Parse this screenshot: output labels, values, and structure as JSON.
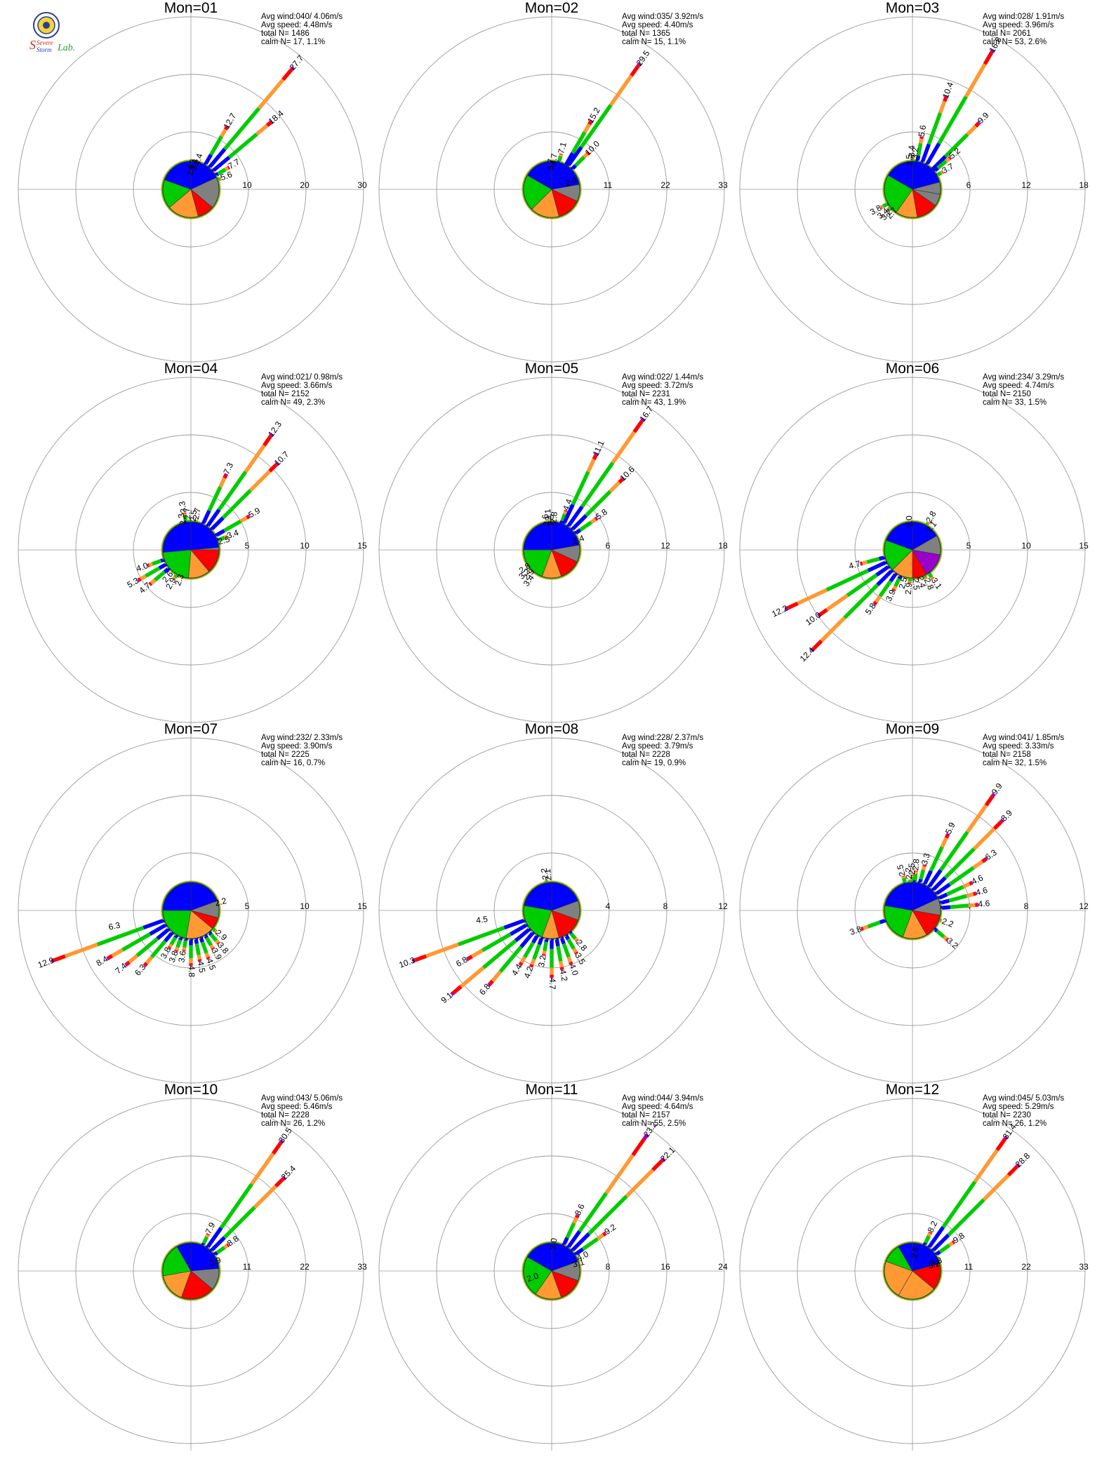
{
  "logo": {
    "text_line1": "Severe",
    "text_line2": "Storm",
    "text_line3": "Lab.",
    "colors": {
      "seal": "#2a3f8f",
      "seal_fill": "#f2d33a",
      "s": "#d4261a",
      "storm": "#1a3ccf",
      "lab": "#2a9a2a"
    }
  },
  "speed_class_colors": [
    "#0000ff",
    "#00cc00",
    "#ff9933",
    "#ff0000",
    "#9900cc"
  ],
  "sector_colors": {
    "blue": "#0000ff",
    "green": "#00cc00",
    "orange": "#ff9933",
    "red": "#ff0000",
    "purple": "#9900cc",
    "gray": "#808080"
  },
  "stats_labels": {
    "avg_wind": "Avg wind:",
    "avg_speed": "Avg speed:",
    "total": "total N=",
    "calm": "calm N="
  },
  "chart_data": [
    {
      "type": "wind-rose",
      "title": "Mon=01",
      "avg_wind": "040/ 4.06m/s",
      "avg_speed": "4.48m/s",
      "total_n": "1486",
      "calm": "17,   1.1%",
      "ring_labels": [
        "10",
        "20",
        "30"
      ],
      "rmax": 30,
      "labels": [
        [
          40,
          27.7,
          "27.7"
        ],
        [
          30,
          12.7,
          "12.7"
        ],
        [
          50,
          18.4,
          "18.4"
        ],
        [
          60,
          7.7,
          "7.7"
        ],
        [
          70,
          5.6,
          "5.6"
        ],
        [
          15,
          4.4,
          "4.4"
        ],
        [
          10,
          3.4,
          "3.4"
        ],
        [
          5,
          3.3,
          "3.3"
        ],
        [
          0,
          2.4,
          "2.4"
        ]
      ],
      "pie": [
        [
          0,
          65,
          "blue"
        ],
        [
          65,
          130,
          "gray"
        ],
        [
          130,
          165,
          "red"
        ],
        [
          165,
          230,
          "orange"
        ],
        [
          230,
          290,
          "green"
        ],
        [
          290,
          360,
          "blue"
        ]
      ]
    },
    {
      "type": "wind-rose",
      "title": "Mon=02",
      "avg_wind": "035/ 3.92m/s",
      "avg_speed": "4.40m/s",
      "total_n": "1365",
      "calm": "15,   1.1%",
      "ring_labels": [
        "11",
        "22",
        "33"
      ],
      "rmax": 33,
      "labels": [
        [
          35,
          29.5,
          "29.5"
        ],
        [
          30,
          15.2,
          "15.2"
        ],
        [
          45,
          10.0,
          "10.0"
        ],
        [
          70,
          2.9,
          "2.9"
        ],
        [
          15,
          7.1,
          "7.1"
        ],
        [
          5,
          4.7,
          "4.7"
        ],
        [
          0,
          3.7,
          "3.7"
        ]
      ],
      "pie": [
        [
          0,
          80,
          "blue"
        ],
        [
          80,
          115,
          "gray"
        ],
        [
          115,
          165,
          "red"
        ],
        [
          165,
          225,
          "orange"
        ],
        [
          225,
          300,
          "green"
        ],
        [
          300,
          360,
          "blue"
        ]
      ]
    },
    {
      "type": "wind-rose",
      "title": "Mon=03",
      "avg_wind": "028/ 1.91m/s",
      "avg_speed": "3.96m/s",
      "total_n": "2061",
      "calm": "53,   2.6%",
      "ring_labels": [
        "6",
        "12",
        "18"
      ],
      "rmax": 18,
      "labels": [
        [
          30,
          16.8,
          "16.8"
        ],
        [
          20,
          10.4,
          "10.4"
        ],
        [
          45,
          9.9,
          "9.9"
        ],
        [
          10,
          5.6,
          "5.6"
        ],
        [
          50,
          5.2,
          "5.2"
        ],
        [
          60,
          3.7,
          "3.7"
        ],
        [
          0,
          3.4,
          "3.4"
        ],
        [
          5,
          3.2,
          "3.2"
        ],
        [
          -5,
          2.5,
          "2.5"
        ],
        [
          240,
          3.8,
          "3.8"
        ],
        [
          230,
          3.4,
          "3.4"
        ],
        [
          225,
          3.2,
          "3.2"
        ],
        [
          220,
          2.7,
          "2.7"
        ]
      ],
      "pie": [
        [
          0,
          75,
          "blue"
        ],
        [
          75,
          100,
          "gray"
        ],
        [
          100,
          125,
          "gray"
        ],
        [
          125,
          170,
          "red"
        ],
        [
          170,
          215,
          "orange"
        ],
        [
          215,
          300,
          "green"
        ],
        [
          300,
          360,
          "blue"
        ]
      ]
    },
    {
      "type": "wind-rose",
      "title": "Mon=04",
      "avg_wind": "021/ 0.98m/s",
      "avg_speed": "3.66m/s",
      "total_n": "2152",
      "calm": "49,   2.3%",
      "ring_labels": [
        "5",
        "10",
        "15"
      ],
      "rmax": 15,
      "labels": [
        [
          35,
          12.3,
          "12.3"
        ],
        [
          45,
          10.7,
          "10.7"
        ],
        [
          25,
          7.3,
          "7.3"
        ],
        [
          60,
          5.9,
          "5.9"
        ],
        [
          70,
          3.4,
          "3.4"
        ],
        [
          75,
          2.5,
          "2.5"
        ],
        [
          10,
          2.7,
          "2.7"
        ],
        [
          5,
          2.5,
          "2.5"
        ],
        [
          -5,
          2.7,
          "2.7"
        ],
        [
          -10,
          3.3,
          "3.3"
        ],
        [
          -15,
          2.3,
          "2.3"
        ],
        [
          240,
          5.3,
          "5.3"
        ],
        [
          230,
          4.7,
          "4.7"
        ],
        [
          250,
          4.0,
          "4.0"
        ],
        [
          220,
          2.6,
          "2.6"
        ],
        [
          210,
          2.9,
          "2.9"
        ],
        [
          200,
          2.3,
          "2.3"
        ]
      ],
      "pie": [
        [
          0,
          90,
          "gray"
        ],
        [
          0,
          85,
          "blue"
        ],
        [
          90,
          140,
          "red"
        ],
        [
          140,
          185,
          "orange"
        ],
        [
          185,
          265,
          "green"
        ],
        [
          265,
          360,
          "blue"
        ]
      ]
    },
    {
      "type": "wind-rose",
      "title": "Mon=05",
      "avg_wind": "022/ 1.44m/s",
      "avg_speed": "3.72m/s",
      "total_n": "2231",
      "calm": "43,   1.9%",
      "ring_labels": [
        "6",
        "12",
        "18"
      ],
      "rmax": 18,
      "labels": [
        [
          35,
          16.7,
          "16.7"
        ],
        [
          25,
          11.1,
          "11.1"
        ],
        [
          45,
          10.6,
          "10.6"
        ],
        [
          55,
          5.8,
          "5.8"
        ],
        [
          20,
          4.4,
          "4.4"
        ],
        [
          70,
          2.4,
          "2.4"
        ],
        [
          5,
          2.8,
          "2.8"
        ],
        [
          0,
          2.5,
          "2.5"
        ],
        [
          -5,
          3.1,
          "3.1"
        ],
        [
          -10,
          2.6,
          "2.6"
        ],
        [
          235,
          2.8,
          "2.8"
        ],
        [
          228,
          3.2,
          "3.2"
        ],
        [
          222,
          2.9,
          "2.9"
        ],
        [
          216,
          3.4,
          "3.4"
        ]
      ],
      "pie": [
        [
          0,
          80,
          "blue"
        ],
        [
          80,
          115,
          "gray"
        ],
        [
          115,
          160,
          "red"
        ],
        [
          160,
          200,
          "orange"
        ],
        [
          200,
          270,
          "green"
        ],
        [
          270,
          360,
          "blue"
        ]
      ]
    },
    {
      "type": "wind-rose",
      "title": "Mon=06",
      "avg_wind": "234/ 3.29m/s",
      "avg_speed": "4.74m/s",
      "total_n": "2150",
      "calm": "33,   1.5%",
      "ring_labels": [
        "5",
        "10",
        "15"
      ],
      "rmax": 15,
      "labels": [
        [
          245,
          12.2,
          "12.2"
        ],
        [
          235,
          10.0,
          "10.0"
        ],
        [
          225,
          12.4,
          "12.4"
        ],
        [
          255,
          4.7,
          "4.7"
        ],
        [
          215,
          5.8,
          "5.8"
        ],
        [
          -5,
          2.0,
          "2.0"
        ],
        [
          30,
          2.8,
          "2.8"
        ],
        [
          40,
          2.1,
          "2.1"
        ],
        [
          205,
          3.9,
          "3.9"
        ],
        [
          195,
          2.5,
          "2.5"
        ],
        [
          185,
          2.9,
          "2.9"
        ],
        [
          175,
          2.5,
          "2.5"
        ],
        [
          165,
          2.4,
          "2.4"
        ],
        [
          155,
          2.8,
          "2.8"
        ],
        [
          145,
          3.1,
          "3.1"
        ]
      ],
      "pie": [
        [
          0,
          60,
          "blue"
        ],
        [
          60,
          100,
          "gray"
        ],
        [
          100,
          150,
          "purple"
        ],
        [
          150,
          180,
          "red"
        ],
        [
          180,
          225,
          "orange"
        ],
        [
          225,
          290,
          "green"
        ],
        [
          290,
          360,
          "blue"
        ]
      ]
    },
    {
      "type": "wind-rose",
      "title": "Mon=07",
      "avg_wind": "232/ 2.33m/s",
      "avg_speed": "3.90m/s",
      "total_n": "2225",
      "calm": "16,   0.7%",
      "ring_labels": [
        "5",
        "10",
        "15"
      ],
      "rmax": 15,
      "labels": [
        [
          250,
          12.9,
          "12.9"
        ],
        [
          240,
          8.4,
          "8.4"
        ],
        [
          258,
          6.3,
          "6.3"
        ],
        [
          230,
          7.4,
          "7.4"
        ],
        [
          220,
          6.3,
          "6.3"
        ],
        [
          210,
          3.8,
          "3.8"
        ],
        [
          200,
          3.8,
          "3.8"
        ],
        [
          190,
          3.6,
          "3.6"
        ],
        [
          180,
          4.8,
          "4.8"
        ],
        [
          170,
          4.5,
          "4.5"
        ],
        [
          160,
          4.5,
          "4.5"
        ],
        [
          150,
          3.9,
          "3.9"
        ],
        [
          140,
          3.8,
          "3.8"
        ],
        [
          130,
          2.9,
          "2.9"
        ],
        [
          75,
          2.2,
          "2.2"
        ]
      ],
      "pie": [
        [
          0,
          70,
          "blue"
        ],
        [
          70,
          105,
          "gray"
        ],
        [
          105,
          130,
          "red"
        ],
        [
          130,
          190,
          "orange"
        ],
        [
          190,
          270,
          "green"
        ],
        [
          270,
          360,
          "blue"
        ]
      ]
    },
    {
      "type": "wind-rose",
      "title": "Mon=08",
      "avg_wind": "228/ 2.37m/s",
      "avg_speed": "3.79m/s",
      "total_n": "2228",
      "calm": "19,   0.9%",
      "ring_labels": [
        "4",
        "8",
        "12"
      ],
      "rmax": 12,
      "labels": [
        [
          250,
          10.3,
          "10.3"
        ],
        [
          240,
          6.8,
          "6.8"
        ],
        [
          262,
          4.5,
          "4.5"
        ],
        [
          230,
          9.1,
          "9.1"
        ],
        [
          220,
          6.8,
          "6.8"
        ],
        [
          210,
          4.4,
          "4.4"
        ],
        [
          200,
          4.2,
          "4.2"
        ],
        [
          190,
          3.2,
          "3.2"
        ],
        [
          180,
          4.7,
          "4.7"
        ],
        [
          170,
          4.2,
          "4.2"
        ],
        [
          160,
          4.0,
          "4.0"
        ],
        [
          150,
          3.5,
          "3.5"
        ],
        [
          140,
          2.8,
          "2.8"
        ],
        [
          -5,
          2.1,
          "2.1"
        ],
        [
          -10,
          2.2,
          "2.2"
        ]
      ],
      "pie": [
        [
          0,
          70,
          "blue"
        ],
        [
          70,
          110,
          "gray"
        ],
        [
          110,
          165,
          "red"
        ],
        [
          165,
          200,
          "orange"
        ],
        [
          200,
          280,
          "green"
        ],
        [
          280,
          360,
          "blue"
        ]
      ]
    },
    {
      "type": "wind-rose",
      "title": "Mon=09",
      "avg_wind": "041/ 1.85m/s",
      "avg_speed": "3.33m/s",
      "total_n": "2158",
      "calm": "32,   1.5%",
      "ring_labels": [
        "4",
        "8",
        "12"
      ],
      "rmax": 12,
      "labels": [
        [
          35,
          9.9,
          "9.9"
        ],
        [
          45,
          8.9,
          "8.9"
        ],
        [
          25,
          5.9,
          "5.9"
        ],
        [
          55,
          6.3,
          "6.3"
        ],
        [
          65,
          4.6,
          "4.6"
        ],
        [
          75,
          4.6,
          "4.6"
        ],
        [
          85,
          4.6,
          "4.6"
        ],
        [
          15,
          3.3,
          "3.3"
        ],
        [
          5,
          2.8,
          "2.8"
        ],
        [
          0,
          2.5,
          "2.5"
        ],
        [
          -5,
          2.2,
          "2.2"
        ],
        [
          -15,
          2.5,
          "2.5"
        ],
        [
          250,
          3.8,
          "3.8"
        ],
        [
          110,
          2.2,
          "2.2"
        ],
        [
          130,
          3.2,
          "3.2"
        ]
      ],
      "pie": [
        [
          0,
          65,
          "blue"
        ],
        [
          65,
          100,
          "gray"
        ],
        [
          100,
          150,
          "red"
        ],
        [
          150,
          200,
          "orange"
        ],
        [
          200,
          280,
          "green"
        ],
        [
          280,
          360,
          "blue"
        ]
      ]
    },
    {
      "type": "wind-rose",
      "title": "Mon=10",
      "avg_wind": "043/ 5.06m/s",
      "avg_speed": "5.46m/s",
      "total_n": "2228",
      "calm": "26,   1.2%",
      "ring_labels": [
        "11",
        "22",
        "33"
      ],
      "rmax": 33,
      "labels": [
        [
          35,
          30.5,
          "30.5"
        ],
        [
          45,
          25.4,
          "25.4"
        ],
        [
          25,
          7.9,
          "7.9"
        ],
        [
          55,
          8.8,
          "8.8"
        ],
        [
          70,
          3.9,
          "3.9"
        ]
      ],
      "pie": [
        [
          0,
          85,
          "blue"
        ],
        [
          85,
          130,
          "gray"
        ],
        [
          130,
          200,
          "red"
        ],
        [
          200,
          260,
          "orange"
        ],
        [
          260,
          330,
          "green"
        ],
        [
          330,
          360,
          "blue"
        ]
      ]
    },
    {
      "type": "wind-rose",
      "title": "Mon=11",
      "avg_wind": "044/ 3.94m/s",
      "avg_speed": "4.64m/s",
      "total_n": "2157",
      "calm": "55,   2.5%",
      "ring_labels": [
        "8",
        "16",
        "24"
      ],
      "rmax": 24,
      "labels": [
        [
          35,
          23.2,
          "23.2"
        ],
        [
          45,
          22.1,
          "22.1"
        ],
        [
          25,
          8.6,
          "8.6"
        ],
        [
          55,
          9.2,
          "9.2"
        ],
        [
          65,
          4.0,
          "4.0"
        ],
        [
          75,
          3.1,
          "3.1"
        ],
        [
          5,
          3.0,
          "3.0"
        ],
        [
          250,
          2.0,
          "2.0"
        ]
      ],
      "pie": [
        [
          0,
          70,
          "blue"
        ],
        [
          70,
          110,
          "gray"
        ],
        [
          110,
          160,
          "red"
        ],
        [
          160,
          215,
          "orange"
        ],
        [
          215,
          300,
          "green"
        ],
        [
          300,
          360,
          "blue"
        ]
      ]
    },
    {
      "type": "wind-rose",
      "title": "Mon=12",
      "avg_wind": "045/ 5.03m/s",
      "avg_speed": "5.29m/s",
      "total_n": "2230",
      "calm": "26,   1.2%",
      "ring_labels": [
        "11",
        "22",
        "33"
      ],
      "rmax": 33,
      "labels": [
        [
          35,
          31.4,
          "31.4"
        ],
        [
          45,
          28.8,
          "28.8"
        ],
        [
          25,
          8.2,
          "8.2"
        ],
        [
          55,
          9.8,
          "9.8"
        ],
        [
          70,
          3.8,
          "3.8"
        ],
        [
          75,
          3.2,
          "3.2"
        ],
        [
          10,
          2.5,
          "2.5"
        ]
      ],
      "pie": [
        [
          0,
          75,
          "blue"
        ],
        [
          75,
          130,
          "red"
        ],
        [
          130,
          210,
          "orange"
        ],
        [
          210,
          290,
          "orange"
        ],
        [
          290,
          330,
          "green"
        ],
        [
          330,
          360,
          "blue"
        ]
      ]
    }
  ]
}
